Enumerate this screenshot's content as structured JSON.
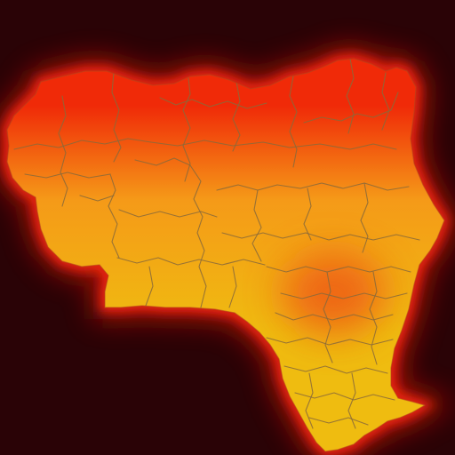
{
  "map": {
    "background_color": "#2a0306",
    "glow_color": "#c0140c",
    "border_color": "#8a6a3a",
    "gradient": {
      "top_color": "#f02a08",
      "mid_color": "#f59a18",
      "bottom_color": "#efbc10"
    },
    "hotspot_color": "#ee5a14",
    "region_count": 36
  }
}
